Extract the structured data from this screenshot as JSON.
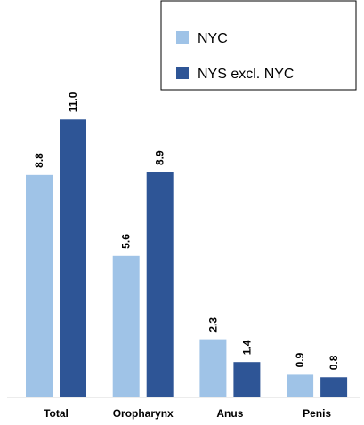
{
  "chart_data": {
    "type": "bar",
    "categories": [
      "Total",
      "Oropharynx",
      "Anus",
      "Penis"
    ],
    "series": [
      {
        "name": "NYC",
        "color": "#9fc3e7",
        "values": [
          8.8,
          5.6,
          2.3,
          0.9
        ],
        "value_labels": [
          "8.8",
          "5.6",
          "2.3",
          "0.9"
        ]
      },
      {
        "name": "NYS excl. NYC",
        "color": "#2e5596",
        "values": [
          11.0,
          8.9,
          1.4,
          0.8
        ],
        "value_labels": [
          "11.0",
          "8.9",
          "1.4",
          "0.8"
        ]
      }
    ],
    "ylim": [
      0,
      14
    ],
    "legend": "upper right"
  }
}
